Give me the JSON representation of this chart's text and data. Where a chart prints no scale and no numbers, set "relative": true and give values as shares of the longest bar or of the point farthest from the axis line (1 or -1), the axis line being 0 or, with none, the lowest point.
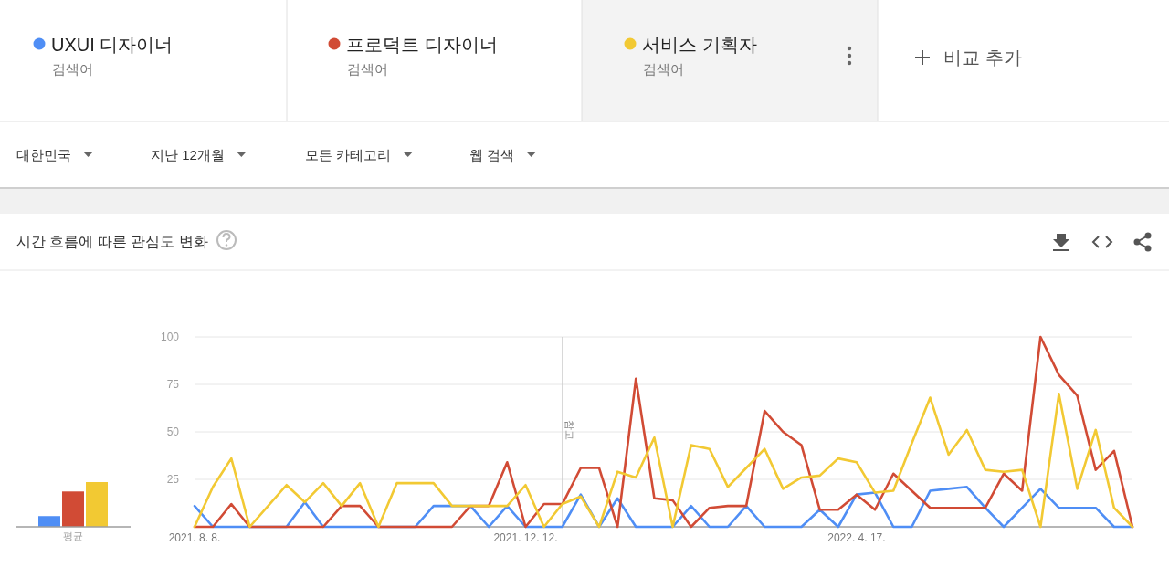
{
  "chart_data": [
    {
      "type": "line",
      "title": "시간 흐름에 따른 관심도 변화",
      "x": [
        "2021-08-08",
        "2021-08-15",
        "2021-08-22",
        "2021-08-29",
        "2021-09-05",
        "2021-09-12",
        "2021-09-19",
        "2021-09-26",
        "2021-10-03",
        "2021-10-10",
        "2021-10-17",
        "2021-10-24",
        "2021-10-31",
        "2021-11-07",
        "2021-11-14",
        "2021-11-21",
        "2021-11-28",
        "2021-12-05",
        "2021-12-12",
        "2021-12-19",
        "2021-12-26",
        "2022-01-02",
        "2022-01-09",
        "2022-01-16",
        "2022-01-23",
        "2022-01-30",
        "2022-02-06",
        "2022-02-13",
        "2022-02-20",
        "2022-02-27",
        "2022-03-06",
        "2022-03-13",
        "2022-03-20",
        "2022-03-27",
        "2022-04-03",
        "2022-04-10",
        "2022-04-17",
        "2022-04-24",
        "2022-05-01",
        "2022-05-08",
        "2022-05-15",
        "2022-05-22",
        "2022-05-29",
        "2022-06-05",
        "2022-06-12",
        "2022-06-19",
        "2022-06-26",
        "2022-07-03",
        "2022-07-10",
        "2022-07-17",
        "2022-07-24",
        "2022-07-31"
      ],
      "series": [
        {
          "name": "UXUI 디자이너",
          "color": "#4f8ef5",
          "values": [
            11,
            0,
            0,
            0,
            0,
            0,
            13,
            0,
            0,
            0,
            0,
            0,
            0,
            11,
            11,
            11,
            0,
            11,
            0,
            0,
            0,
            17,
            0,
            15,
            0,
            0,
            0,
            11,
            0,
            0,
            11,
            0,
            0,
            0,
            9,
            0,
            17,
            18,
            0,
            0,
            19,
            20,
            21,
            10,
            0,
            10,
            20,
            10,
            10,
            10,
            0,
            0
          ]
        },
        {
          "name": "프로덕트 디자이너",
          "color": "#d14b35",
          "values": [
            0,
            0,
            12,
            0,
            0,
            0,
            0,
            0,
            11,
            11,
            0,
            0,
            0,
            0,
            0,
            11,
            11,
            34,
            0,
            12,
            12,
            31,
            31,
            0,
            78,
            15,
            14,
            0,
            10,
            11,
            11,
            61,
            50,
            43,
            9,
            9,
            17,
            9,
            28,
            19,
            10,
            10,
            10,
            10,
            28,
            19,
            100,
            80,
            69,
            30,
            40,
            0
          ]
        },
        {
          "name": "서비스 기획자",
          "color": "#f2c933",
          "values": [
            0,
            21,
            36,
            0,
            11,
            22,
            13,
            23,
            11,
            23,
            0,
            23,
            23,
            23,
            11,
            11,
            11,
            11,
            22,
            0,
            12,
            16,
            0,
            29,
            26,
            47,
            0,
            43,
            41,
            21,
            31,
            41,
            20,
            26,
            27,
            36,
            34,
            18,
            19,
            44,
            68,
            38,
            51,
            30,
            29,
            30,
            0,
            70,
            20,
            51,
            10,
            0
          ]
        }
      ],
      "xlim": [
        "2021-08-08",
        "2022-07-31"
      ],
      "xticks": [
        {
          "value": "2021-08-08",
          "label": "2021. 8. 8."
        },
        {
          "value": "2021-12-12",
          "label": "2021. 12. 12."
        },
        {
          "value": "2022-04-17",
          "label": "2022. 4. 17."
        }
      ],
      "ylim": [
        0,
        100
      ],
      "yticks": [
        {
          "value": 0,
          "label": null
        },
        25,
        50,
        75,
        100
      ],
      "grid": "y",
      "legend": "top",
      "ref_lines": [
        {
          "axis": "x",
          "value": "2021-12-26",
          "label": "참고"
        }
      ],
      "annotations": [
        "검색어",
        "검색어",
        "검색어",
        "비교 추가",
        "대한민국",
        "지난 12개월",
        "모든 카테고리",
        "웹 검색"
      ]
    },
    {
      "type": "bar",
      "categories": [
        "평균"
      ],
      "relative": true,
      "series": [
        {
          "color": "#4f8ef5",
          "values": [
            0.24
          ]
        },
        {
          "color": "#d14b35",
          "values": [
            0.79
          ]
        },
        {
          "color": "#f2c933",
          "values": [
            1
          ]
        }
      ]
    }
  ]
}
